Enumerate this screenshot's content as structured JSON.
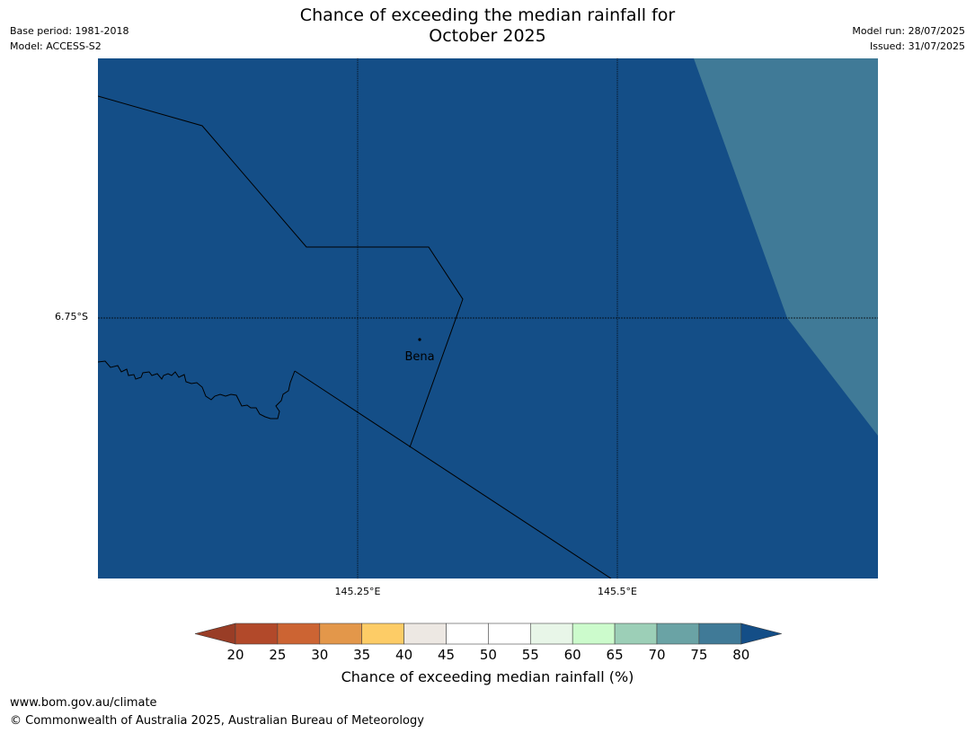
{
  "header": {
    "title_line1": "Chance of exceeding the median rainfall for",
    "title_line2": "October 2025",
    "base_period": "Base period: 1981-2018",
    "model": "Model: ACCESS-S2",
    "model_run": "Model run: 28/07/2025",
    "issued": "Issued: 31/07/2025"
  },
  "map": {
    "fill_color_main": "#144e87",
    "fill_color_secondary": "#407a97",
    "place_label": "Bena",
    "lat_label": "6.75°S",
    "lon_labels": [
      "145.25°E",
      "145.5°E"
    ]
  },
  "colorbar": {
    "ticks": [
      "20",
      "25",
      "30",
      "35",
      "40",
      "45",
      "50",
      "55",
      "60",
      "65",
      "70",
      "75",
      "80"
    ],
    "bins": [
      "#b2492a",
      "#cc6433",
      "#e3974a",
      "#fdcc66",
      "#ede8e3",
      "#ffffff",
      "#ffffff",
      "#e8f6e8",
      "#ccfbcc",
      "#9ccfb7",
      "#6aa3a5",
      "#407a97"
    ],
    "low_extend_color": "#993d26",
    "high_extend_color": "#144e87",
    "label": "Chance of exceeding median rainfall (%)"
  },
  "footer": {
    "url": "www.bom.gov.au/climate",
    "copyright": "© Commonwealth of Australia 2025, Australian Bureau of Meteorology"
  }
}
